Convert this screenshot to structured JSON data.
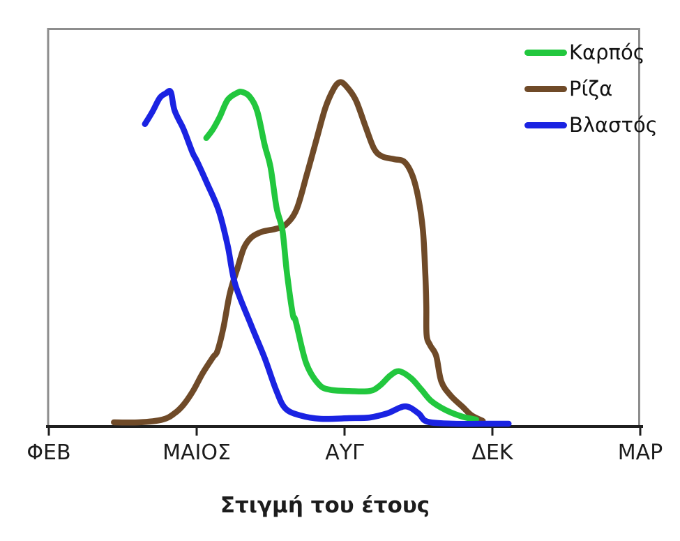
{
  "chart_data": {
    "type": "line",
    "title": "",
    "xlabel": "Στιγμή του έτους",
    "ylabel": "",
    "grid": false,
    "x_axis": {
      "tick_labels": [
        "ΦΕΒ",
        "ΜΑΙΟΣ",
        "ΑΥΓ",
        "ΔΕΚ",
        "ΜΑΡ"
      ],
      "range": [
        0,
        4
      ]
    },
    "y_axis": {
      "range": [
        0,
        100
      ],
      "ticks_visible": false
    },
    "legend": {
      "position": "top-right"
    },
    "colors": {
      "axis": "#1f1f1f",
      "frame": "#8d8d8d",
      "text": "#1c1c1c"
    },
    "series": [
      {
        "name": "Καρπός",
        "color": "#22c73e",
        "z": 2,
        "points": [
          [
            1.065,
            83
          ],
          [
            1.11,
            85.5
          ],
          [
            1.155,
            89
          ],
          [
            1.21,
            94
          ],
          [
            1.275,
            96
          ],
          [
            1.31,
            96.2
          ],
          [
            1.36,
            94.8
          ],
          [
            1.41,
            90.6
          ],
          [
            1.46,
            81
          ],
          [
            1.5,
            74.5
          ],
          [
            1.54,
            63
          ],
          [
            1.58,
            56.4
          ],
          [
            1.61,
            44.4
          ],
          [
            1.65,
            32.3
          ],
          [
            1.67,
            30.3
          ],
          [
            1.74,
            18.3
          ],
          [
            1.825,
            12.2
          ],
          [
            1.9,
            10.6
          ],
          [
            2.03,
            10.2
          ],
          [
            2.17,
            10.2
          ],
          [
            2.24,
            11.8
          ],
          [
            2.31,
            14.7
          ],
          [
            2.37,
            15.9
          ],
          [
            2.45,
            13.9
          ],
          [
            2.52,
            10.6
          ],
          [
            2.59,
            7.2
          ],
          [
            2.69,
            4.6
          ],
          [
            2.8,
            2.8
          ],
          [
            2.89,
            2.0
          ]
        ]
      },
      {
        "name": "Ρίζα",
        "color": "#6f4a28",
        "z": 1,
        "points": [
          [
            0.44,
            1.2
          ],
          [
            0.61,
            1.2
          ],
          [
            0.77,
            2.0
          ],
          [
            0.85,
            3.8
          ],
          [
            0.91,
            6.2
          ],
          [
            0.975,
            10.2
          ],
          [
            1.04,
            15.3
          ],
          [
            1.11,
            19.9
          ],
          [
            1.14,
            21.7
          ],
          [
            1.18,
            28.3
          ],
          [
            1.225,
            38.4
          ],
          [
            1.275,
            45.4
          ],
          [
            1.32,
            51.4
          ],
          [
            1.37,
            54.4
          ],
          [
            1.44,
            56.0
          ],
          [
            1.53,
            56.8
          ],
          [
            1.6,
            58.0
          ],
          [
            1.675,
            62.4
          ],
          [
            1.745,
            72.5
          ],
          [
            1.81,
            82.5
          ],
          [
            1.87,
            91.6
          ],
          [
            1.925,
            97
          ],
          [
            1.965,
            99
          ],
          [
            2.005,
            98.2
          ],
          [
            2.075,
            94
          ],
          [
            2.14,
            86.5
          ],
          [
            2.2,
            79.9
          ],
          [
            2.255,
            77.7
          ],
          [
            2.335,
            76.9
          ],
          [
            2.405,
            76.1
          ],
          [
            2.46,
            72.1
          ],
          [
            2.5,
            65.5
          ],
          [
            2.53,
            56.4
          ],
          [
            2.545,
            45.4
          ],
          [
            2.553,
            35
          ],
          [
            2.555,
            26.3
          ],
          [
            2.58,
            23.3
          ],
          [
            2.62,
            20.3
          ],
          [
            2.655,
            12.9
          ],
          [
            2.72,
            8.8
          ],
          [
            2.8,
            5.6
          ],
          [
            2.86,
            3.2
          ],
          [
            2.935,
            1.6
          ]
        ]
      },
      {
        "name": "Βλαστός",
        "color": "#1a23e2",
        "z": 3,
        "points": [
          [
            0.65,
            87
          ],
          [
            0.7,
            90.5
          ],
          [
            0.75,
            94.5
          ],
          [
            0.79,
            95.8
          ],
          [
            0.825,
            96.2
          ],
          [
            0.85,
            91
          ],
          [
            0.905,
            86.1
          ],
          [
            0.93,
            83.5
          ],
          [
            0.975,
            78.5
          ],
          [
            1.0,
            76.5
          ],
          [
            1.07,
            70
          ],
          [
            1.15,
            62
          ],
          [
            1.21,
            52
          ],
          [
            1.26,
            41
          ],
          [
            1.37,
            29
          ],
          [
            1.46,
            19.7
          ],
          [
            1.54,
            10.2
          ],
          [
            1.6,
            5.2
          ],
          [
            1.7,
            3.2
          ],
          [
            1.84,
            2.2
          ],
          [
            2.03,
            2.4
          ],
          [
            2.17,
            2.6
          ],
          [
            2.29,
            3.8
          ],
          [
            2.41,
            5.8
          ],
          [
            2.5,
            3.8
          ],
          [
            2.56,
            1.4
          ],
          [
            2.74,
            0.8
          ],
          [
            2.97,
            0.8
          ],
          [
            3.11,
            0.8
          ]
        ]
      }
    ]
  }
}
